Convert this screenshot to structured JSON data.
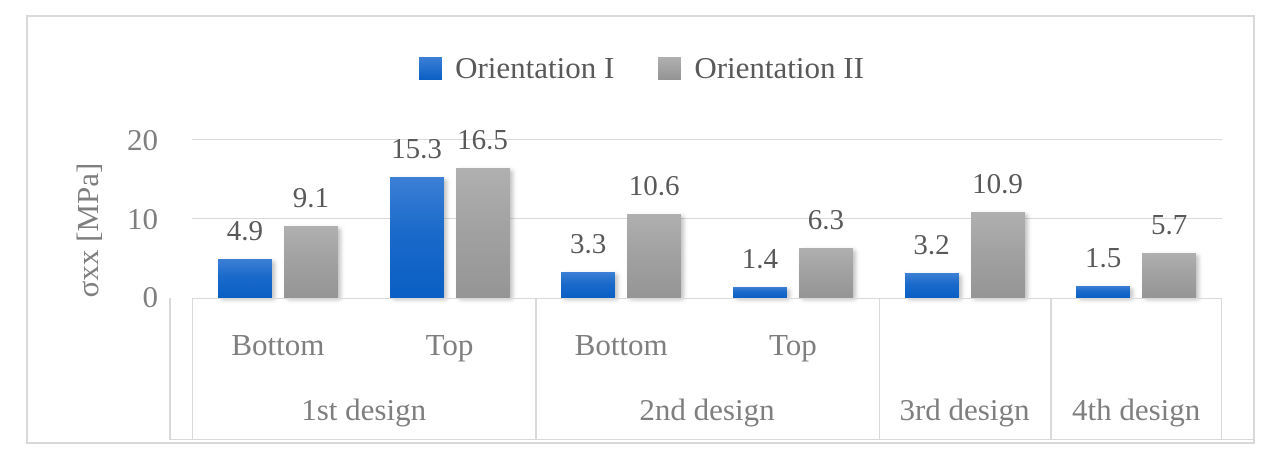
{
  "chart_data": {
    "type": "bar",
    "title": "",
    "ylabel": "σxx [MPa]",
    "ylim": [
      0,
      20
    ],
    "yticks": [
      20,
      10,
      0
    ],
    "grid": true,
    "legend_position": "top-center",
    "categories": [
      "Bottom",
      "Top",
      "Bottom",
      "Top",
      "",
      ""
    ],
    "group_labels": [
      {
        "label": "1st design",
        "span": 2
      },
      {
        "label": "2nd design",
        "span": 2
      },
      {
        "label": "3rd design",
        "span": 1
      },
      {
        "label": "4th design",
        "span": 1
      }
    ],
    "series": [
      {
        "name": "Orientation I",
        "color": "#1266c8",
        "values": [
          4.9,
          15.3,
          3.3,
          1.4,
          3.2,
          1.5
        ]
      },
      {
        "name": "Orientation II",
        "color": "#a3a3a3",
        "values": [
          9.1,
          16.5,
          10.6,
          6.3,
          10.9,
          5.7
        ]
      }
    ],
    "data_labels_shown": true
  },
  "colors": {
    "frame_border": "#d9d9d9",
    "gridline": "#d9d9d9",
    "axis_text": "#7f7f7f",
    "data_label_text": "#595959",
    "legend_text": "#595959",
    "bar_blue": "#1266c8",
    "bar_gray": "#a3a3a3",
    "background": "#ffffff"
  }
}
